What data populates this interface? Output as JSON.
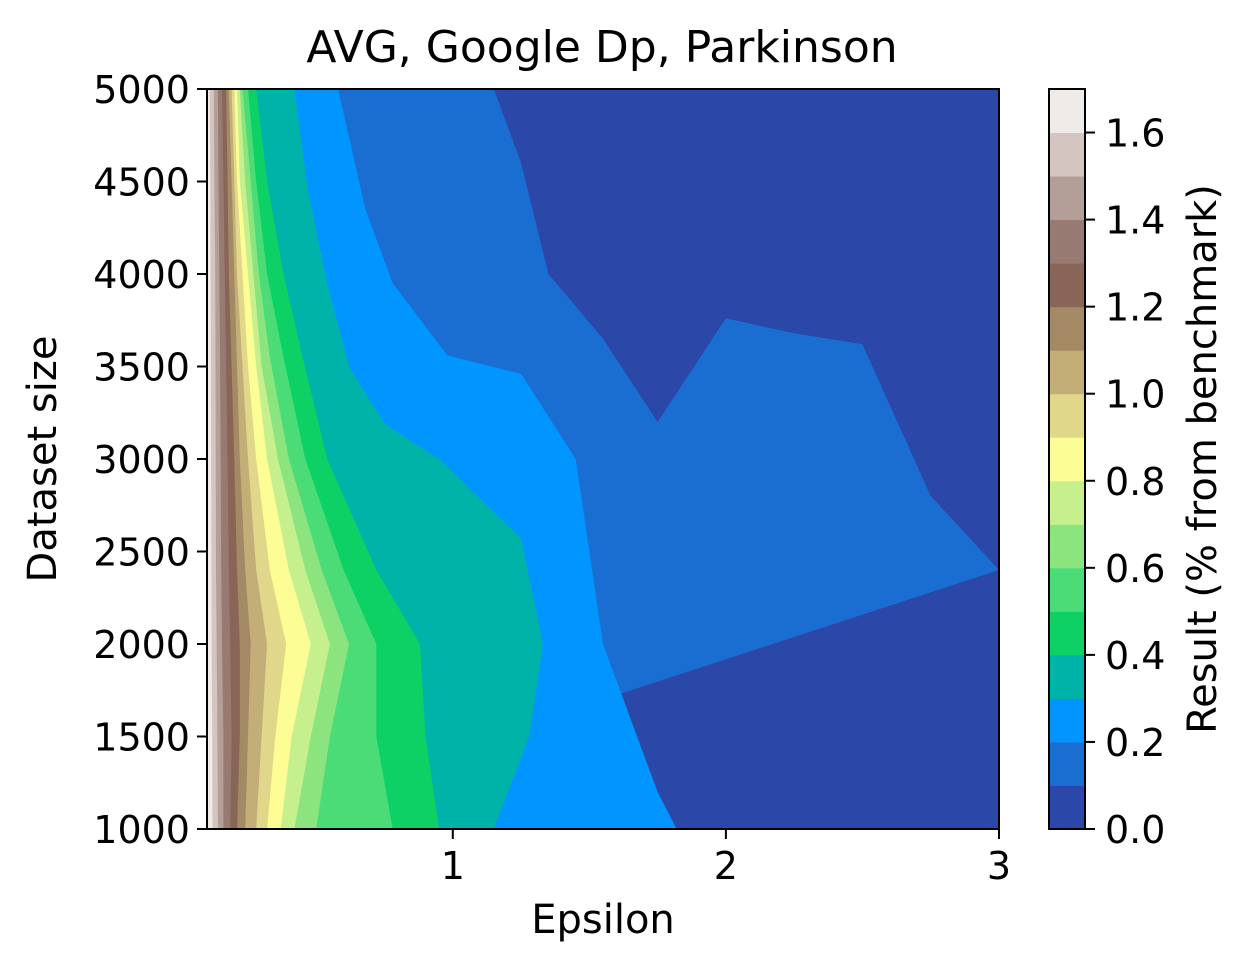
{
  "chart_data": {
    "type": "contourf",
    "title": "AVG, Google Dp, Parkinson",
    "xlabel": "Epsilon",
    "ylabel": "Dataset size",
    "xlim": [
      0.1,
      3.0
    ],
    "ylim": [
      1000,
      5000
    ],
    "xticks": [
      1,
      2,
      3
    ],
    "xtick_labels": [
      "1",
      "2",
      "3"
    ],
    "yticks": [
      1000,
      1500,
      2000,
      2500,
      3000,
      3500,
      4000,
      4500,
      5000
    ],
    "ytick_labels": [
      "1000",
      "1500",
      "2000",
      "2500",
      "3000",
      "3500",
      "4000",
      "4500",
      "5000"
    ],
    "colorbar": {
      "label": "Result (% from benchmark)",
      "range": [
        0.0,
        1.7
      ],
      "ticks": [
        0.0,
        0.2,
        0.4,
        0.6,
        0.8,
        1.0,
        1.2,
        1.4,
        1.6
      ],
      "tick_labels": [
        "0.0",
        "0.2",
        "0.4",
        "0.6",
        "0.8",
        "1.0",
        "1.2",
        "1.4",
        "1.6"
      ],
      "level_step": 0.1,
      "level_colors": [
        "#2b47a8",
        "#1a6ed2",
        "#0095ff",
        "#00b3a9",
        "#0dd164",
        "#4bdc78",
        "#8be47d",
        "#c5f08d",
        "#fdfd95",
        "#e1d78a",
        "#c4ae77",
        "#a38964",
        "#886557",
        "#977b72",
        "#b49f98",
        "#d4c5c1",
        "#efebe9"
      ]
    },
    "contours": [
      {
        "level": 0.1,
        "points": [
          [
            1.15,
            5000
          ],
          [
            1.25,
            4600
          ],
          [
            1.35,
            4000
          ],
          [
            1.55,
            3650
          ],
          [
            1.75,
            3200
          ],
          [
            2.0,
            3760
          ],
          [
            2.25,
            3680
          ],
          [
            2.5,
            3620
          ],
          [
            2.75,
            2800
          ],
          [
            3.0,
            2400
          ]
        ]
      },
      {
        "level": 0.2,
        "points": [
          [
            0.58,
            5000
          ],
          [
            0.68,
            4350
          ],
          [
            0.78,
            3950
          ],
          [
            0.98,
            3560
          ],
          [
            1.25,
            3460
          ],
          [
            1.45,
            3000
          ],
          [
            1.55,
            2000
          ],
          [
            1.75,
            1200
          ],
          [
            1.82,
            1000
          ]
        ]
      },
      {
        "level": 0.3,
        "points": [
          [
            0.42,
            5000
          ],
          [
            0.47,
            4450
          ],
          [
            0.54,
            3950
          ],
          [
            0.62,
            3500
          ],
          [
            0.75,
            3190
          ],
          [
            0.95,
            3000
          ],
          [
            1.25,
            2570
          ],
          [
            1.33,
            2000
          ],
          [
            1.28,
            1500
          ],
          [
            1.15,
            1000
          ]
        ]
      },
      {
        "level": 0.4,
        "points": [
          [
            0.28,
            5000
          ],
          [
            0.32,
            4500
          ],
          [
            0.38,
            4000
          ],
          [
            0.45,
            3550
          ],
          [
            0.54,
            3000
          ],
          [
            0.72,
            2400
          ],
          [
            0.88,
            2000
          ],
          [
            0.9,
            1500
          ],
          [
            0.95,
            1000
          ]
        ]
      },
      {
        "level": 0.5,
        "points": [
          [
            0.25,
            5000
          ],
          [
            0.28,
            4500
          ],
          [
            0.32,
            4000
          ],
          [
            0.38,
            3550
          ],
          [
            0.46,
            3000
          ],
          [
            0.6,
            2400
          ],
          [
            0.72,
            2000
          ],
          [
            0.72,
            1500
          ],
          [
            0.78,
            1000
          ]
        ]
      },
      {
        "level": 0.6,
        "points": [
          [
            0.23,
            5000
          ],
          [
            0.26,
            4500
          ],
          [
            0.29,
            4000
          ],
          [
            0.33,
            3550
          ],
          [
            0.4,
            3000
          ],
          [
            0.52,
            2400
          ],
          [
            0.62,
            2000
          ],
          [
            0.55,
            1500
          ],
          [
            0.5,
            1000
          ]
        ]
      },
      {
        "level": 0.7,
        "points": [
          [
            0.22,
            5000
          ],
          [
            0.24,
            4500
          ],
          [
            0.27,
            4000
          ],
          [
            0.3,
            3500
          ],
          [
            0.36,
            3000
          ],
          [
            0.46,
            2400
          ],
          [
            0.55,
            2000
          ],
          [
            0.48,
            1500
          ],
          [
            0.42,
            1000
          ]
        ]
      },
      {
        "level": 0.8,
        "points": [
          [
            0.21,
            5000
          ],
          [
            0.22,
            4500
          ],
          [
            0.25,
            4000
          ],
          [
            0.28,
            3500
          ],
          [
            0.32,
            3000
          ],
          [
            0.4,
            2400
          ],
          [
            0.48,
            2000
          ],
          [
            0.41,
            1500
          ],
          [
            0.37,
            1000
          ]
        ]
      },
      {
        "level": 0.9,
        "points": [
          [
            0.2,
            5000
          ],
          [
            0.21,
            4500
          ],
          [
            0.23,
            4000
          ],
          [
            0.25,
            3500
          ],
          [
            0.28,
            3000
          ],
          [
            0.33,
            2400
          ],
          [
            0.39,
            2000
          ],
          [
            0.35,
            1500
          ],
          [
            0.32,
            1000
          ]
        ]
      },
      {
        "level": 1.0,
        "points": [
          [
            0.19,
            5000
          ],
          [
            0.2,
            4500
          ],
          [
            0.21,
            4000
          ],
          [
            0.23,
            3500
          ],
          [
            0.25,
            3000
          ],
          [
            0.28,
            2400
          ],
          [
            0.32,
            2000
          ],
          [
            0.3,
            1500
          ],
          [
            0.28,
            1000
          ]
        ]
      },
      {
        "level": 1.1,
        "points": [
          [
            0.18,
            5000
          ],
          [
            0.19,
            4500
          ],
          [
            0.2,
            4000
          ],
          [
            0.21,
            3500
          ],
          [
            0.22,
            3000
          ],
          [
            0.24,
            2400
          ],
          [
            0.26,
            2000
          ],
          [
            0.25,
            1500
          ],
          [
            0.24,
            1000
          ]
        ]
      },
      {
        "level": 1.2,
        "points": [
          [
            0.17,
            5000
          ],
          [
            0.175,
            4500
          ],
          [
            0.18,
            4000
          ],
          [
            0.19,
            3500
          ],
          [
            0.2,
            3000
          ],
          [
            0.21,
            2400
          ],
          [
            0.22,
            2000
          ],
          [
            0.22,
            1500
          ],
          [
            0.21,
            1000
          ]
        ]
      },
      {
        "level": 1.3,
        "points": [
          [
            0.155,
            5000
          ],
          [
            0.16,
            4500
          ],
          [
            0.165,
            4000
          ],
          [
            0.17,
            3500
          ],
          [
            0.175,
            3000
          ],
          [
            0.18,
            2400
          ],
          [
            0.185,
            2000
          ],
          [
            0.19,
            1500
          ],
          [
            0.185,
            1000
          ]
        ]
      },
      {
        "level": 1.4,
        "points": [
          [
            0.14,
            5000
          ],
          [
            0.142,
            4500
          ],
          [
            0.145,
            4000
          ],
          [
            0.148,
            3500
          ],
          [
            0.15,
            3000
          ],
          [
            0.152,
            2400
          ],
          [
            0.155,
            2000
          ],
          [
            0.16,
            1500
          ],
          [
            0.16,
            1000
          ]
        ]
      },
      {
        "level": 1.5,
        "points": [
          [
            0.125,
            5000
          ],
          [
            0.127,
            4500
          ],
          [
            0.13,
            4000
          ],
          [
            0.131,
            3500
          ],
          [
            0.132,
            3000
          ],
          [
            0.133,
            2400
          ],
          [
            0.135,
            2000
          ],
          [
            0.138,
            1500
          ],
          [
            0.14,
            1000
          ]
        ]
      },
      {
        "level": 1.6,
        "points": [
          [
            0.11,
            5000
          ],
          [
            0.112,
            4500
          ],
          [
            0.113,
            4000
          ],
          [
            0.114,
            3500
          ],
          [
            0.115,
            3000
          ],
          [
            0.116,
            2400
          ],
          [
            0.117,
            2000
          ],
          [
            0.119,
            1500
          ],
          [
            0.12,
            1000
          ]
        ]
      }
    ],
    "low_pockets": [
      {
        "level": 0.1,
        "points": [
          [
            2.47,
            1000
          ],
          [
            2.5,
            1300
          ],
          [
            2.54,
            1000
          ]
        ]
      },
      {
        "level": 0.1,
        "points": [
          [
            2.92,
            1000
          ],
          [
            3.0,
            1320
          ],
          [
            3.0,
            1000
          ]
        ]
      }
    ]
  }
}
